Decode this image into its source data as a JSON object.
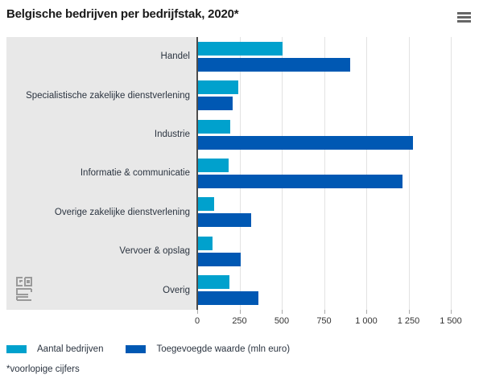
{
  "header": {
    "title": "Belgische bedrijven per bedrijfstak, 2020*"
  },
  "chart_data": {
    "type": "bar",
    "orientation": "horizontal",
    "title": "Belgische bedrijven per bedrijfstak, 2020*",
    "categories": [
      "Handel",
      "Specialistische zakelijke dienstverlening",
      "Industrie",
      "Informatie & communicatie",
      "Overige zakelijke dienstverlening",
      "Vervoer & opslag",
      "Overig"
    ],
    "series": [
      {
        "name": "Aantal bedrijven",
        "color": "#00a1cd",
        "values": [
          505,
          245,
          195,
          185,
          100,
          90,
          190
        ]
      },
      {
        "name": "Toegevoegde waarde (mln euro)",
        "color": "#0058b3",
        "values": [
          905,
          210,
          1275,
          1215,
          320,
          255,
          360
        ]
      }
    ],
    "xlim": [
      0,
      1500
    ],
    "x_tick_values": [
      0,
      250,
      500,
      750,
      1000,
      1250,
      1500
    ],
    "x_tick_labels": [
      "0",
      "250",
      "500",
      "750",
      "1 000",
      "1 250",
      "1 500"
    ],
    "grid": true,
    "legend_position": "bottom",
    "panel_color": "#e8e8e8"
  },
  "footnote": "*voorlopige cijfers",
  "logo": "cbs-logo"
}
